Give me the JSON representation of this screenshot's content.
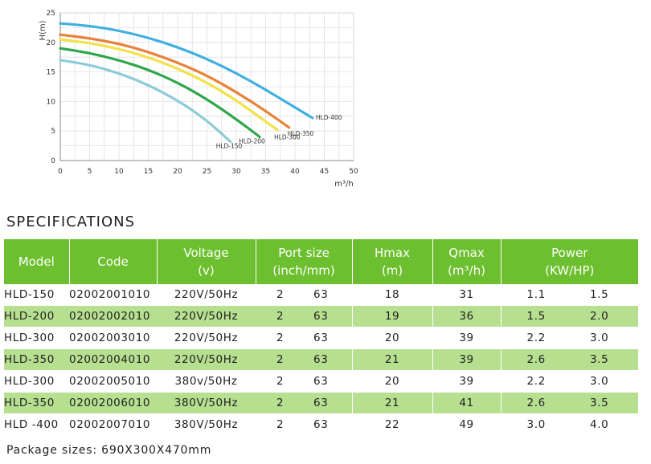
{
  "chart_data": {
    "type": "line",
    "xlabel": "m³/h",
    "ylabel": "H(m)",
    "xlim": [
      0,
      50
    ],
    "ylim": [
      0,
      25
    ],
    "xticks": [
      0,
      5,
      10,
      15,
      20,
      25,
      30,
      35,
      40,
      45,
      50
    ],
    "yticks": [
      0,
      5,
      10,
      15,
      20,
      25
    ],
    "grid": true,
    "series": [
      {
        "name": "HLD-400",
        "color": "#3fb0e0",
        "x": [
          0,
          5,
          10,
          15,
          20,
          25,
          30,
          35,
          40,
          43
        ],
        "y": [
          23.2,
          22.8,
          22.0,
          20.8,
          19.2,
          17.2,
          14.8,
          12.0,
          9.0,
          7.2
        ]
      },
      {
        "name": "HLD-350",
        "color": "#e8823a",
        "x": [
          0,
          5,
          10,
          15,
          20,
          25,
          30,
          35,
          39
        ],
        "y": [
          21.3,
          20.7,
          19.8,
          18.4,
          16.6,
          14.4,
          11.6,
          8.4,
          5.6
        ]
      },
      {
        "name": "HLD-300",
        "color": "#f3e14a",
        "x": [
          0,
          5,
          10,
          15,
          20,
          25,
          30,
          35,
          37
        ],
        "y": [
          20.5,
          19.9,
          18.9,
          17.5,
          15.6,
          13.2,
          10.2,
          6.6,
          5.2
        ]
      },
      {
        "name": "HLD-200",
        "color": "#2fa64a",
        "x": [
          0,
          5,
          10,
          15,
          20,
          25,
          30,
          34
        ],
        "y": [
          19.0,
          18.2,
          17.0,
          15.4,
          13.2,
          10.4,
          7.0,
          4.0
        ]
      },
      {
        "name": "HLD-150",
        "color": "#8ccbd6",
        "x": [
          0,
          5,
          10,
          15,
          20,
          25,
          29
        ],
        "y": [
          17.0,
          16.2,
          14.8,
          12.8,
          10.2,
          6.8,
          3.2
        ]
      }
    ]
  },
  "specifications": {
    "heading": "SPECIFICATIONS",
    "headers": {
      "model": "Model",
      "code": "Code",
      "voltage": "Voltage",
      "voltage_unit": "(v)",
      "port": "Port size",
      "port_unit": "(inch/mm)",
      "hmax": "Hmax",
      "hmax_unit": "(m)",
      "qmax": "Qmax",
      "qmax_unit": "(m³/h)",
      "power": "Power",
      "power_unit": "(KW/HP)"
    },
    "rows": [
      {
        "model": "HLD-150",
        "code": "02002001010",
        "voltage": "220V/50Hz",
        "port_inch": "2",
        "port_mm": "63",
        "hmax": "18",
        "qmax": "31",
        "kw": "1.1",
        "hp": "1.5"
      },
      {
        "model": "HLD-200",
        "code": "02002002010",
        "voltage": "220V/50Hz",
        "port_inch": "2",
        "port_mm": "63",
        "hmax": "19",
        "qmax": "36",
        "kw": "1.5",
        "hp": "2.0"
      },
      {
        "model": "HLD-300",
        "code": "02002003010",
        "voltage": "220V/50Hz",
        "port_inch": "2",
        "port_mm": "63",
        "hmax": "20",
        "qmax": "39",
        "kw": "2.2",
        "hp": "3.0"
      },
      {
        "model": "HLD-350",
        "code": "02002004010",
        "voltage": "220V/50Hz",
        "port_inch": "2",
        "port_mm": "63",
        "hmax": "21",
        "qmax": "39",
        "kw": "2.6",
        "hp": "3.5"
      },
      {
        "model": "HLD-300",
        "code": "02002005010",
        "voltage": "380v/50Hz",
        "port_inch": "2",
        "port_mm": "63",
        "hmax": "20",
        "qmax": "39",
        "kw": "2.2",
        "hp": "3.0"
      },
      {
        "model": "HLD-350",
        "code": "02002006010",
        "voltage": "380V/50Hz",
        "port_inch": "2",
        "port_mm": "63",
        "hmax": "21",
        "qmax": "41",
        "kw": "2.6",
        "hp": "3.5"
      },
      {
        "model": "HLD -400",
        "code": "02002007010",
        "voltage": "380V/50Hz",
        "port_inch": "2",
        "port_mm": "63",
        "hmax": "22",
        "qmax": "49",
        "kw": "3.0",
        "hp": "4.0"
      }
    ]
  },
  "package": {
    "label": "Package sizes:",
    "value": "690X300X470mm"
  },
  "colors": {
    "header_green": "#6cbf2e",
    "row_green": "#b6df90"
  }
}
